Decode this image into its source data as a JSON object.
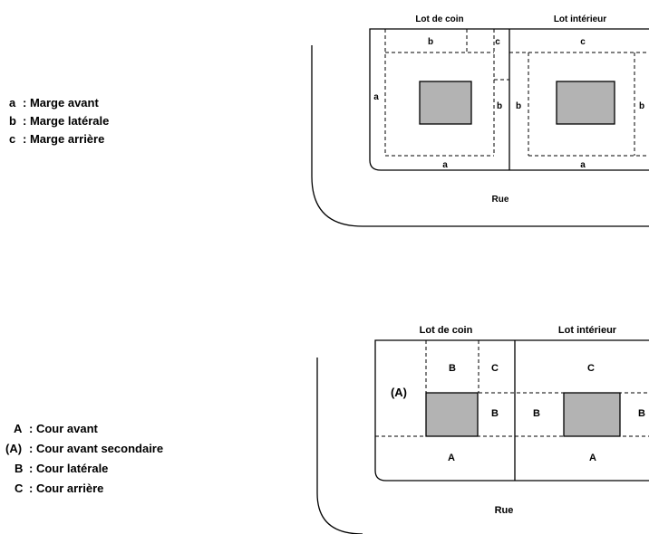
{
  "top": {
    "legend": [
      {
        "key": "a",
        "text": ": Marge avant"
      },
      {
        "key": "b",
        "text": ": Marge latérale"
      },
      {
        "key": "c",
        "text": ": Marge arrière"
      }
    ],
    "lot_corner": "Lot de coin",
    "lot_interior": "Lot intérieur",
    "street": "Rue",
    "labels": {
      "b_top": "b",
      "c_top_corner": "c",
      "c_top_interior": "c",
      "a_left": "a",
      "b_right_corner": "b",
      "b_left_interior": "b",
      "b_right_interior": "b",
      "a_bottom_corner": "a",
      "a_bottom_interior": "a"
    }
  },
  "bottom": {
    "legend": [
      {
        "key": "A",
        "text": ": Cour avant"
      },
      {
        "key": "(A)",
        "text": ": Cour avant secondaire"
      },
      {
        "key": "B",
        "text": ": Cour latérale"
      },
      {
        "key": "C",
        "text": ": Cour arrière"
      }
    ],
    "lot_corner": "Lot de coin",
    "lot_interior": "Lot intérieur",
    "street": "Rue",
    "labels": {
      "B_top_corner": "B",
      "C_top_corner": "C",
      "C_top_interior": "C",
      "A_secondary": "(A)",
      "B_right_corner": "B",
      "B_left_interior": "B",
      "B_right_interior": "B",
      "A_bottom_corner": "A",
      "A_bottom_interior": "A"
    }
  }
}
